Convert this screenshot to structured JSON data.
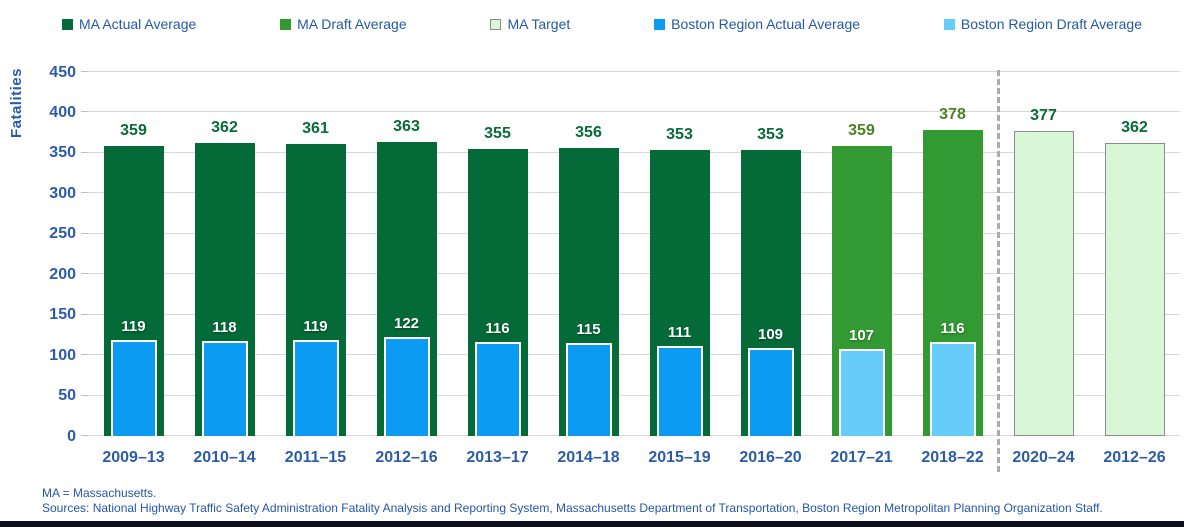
{
  "chart_data": {
    "type": "bar",
    "title": "",
    "xlabel": "",
    "ylabel": "Fatalities",
    "ylim": [
      0,
      450
    ],
    "ytick_step": 50,
    "grid": true,
    "legend_position": "top",
    "categories": [
      "2009–13",
      "2010–14",
      "2011–15",
      "2012–16",
      "2013–17",
      "2014–18",
      "2015–19",
      "2016–20",
      "2017–21",
      "2018–22",
      "2020–24",
      "2012–26"
    ],
    "series": [
      {
        "name": "MA Actual Average",
        "role": "outer",
        "color": "#046A38",
        "label_color": "#0A6B3A",
        "values": [
          359,
          362,
          361,
          363,
          355,
          356,
          353,
          353,
          null,
          null,
          null,
          null
        ]
      },
      {
        "name": "MA Draft Average",
        "role": "outer",
        "color": "#339933",
        "label_color": "#4E8126",
        "values": [
          null,
          null,
          null,
          null,
          null,
          null,
          null,
          null,
          359,
          378,
          null,
          null
        ]
      },
      {
        "name": "MA Target",
        "role": "outer",
        "color": "#D7F7D7",
        "border_color": "#8C8C8C",
        "label_color": "#0A6B3A",
        "values": [
          null,
          null,
          null,
          null,
          null,
          null,
          null,
          null,
          null,
          null,
          377,
          362
        ]
      },
      {
        "name": "Boston Region Actual Average",
        "role": "inner",
        "color": "#0C9BF2",
        "values": [
          119,
          118,
          119,
          122,
          116,
          115,
          111,
          109,
          null,
          null,
          null,
          null
        ]
      },
      {
        "name": "Boston Region Draft Average",
        "role": "inner",
        "color": "#66CCFA",
        "values": [
          null,
          null,
          null,
          null,
          null,
          null,
          null,
          null,
          107,
          116,
          null,
          null
        ]
      }
    ],
    "separator_after_category": "2018–22"
  },
  "footer": {
    "note": "MA = Massachusetts.",
    "sources": "Sources: National Highway Traffic Safety Administration Fatality Analysis and Reporting System, Massachusetts Department of Transportation, Boston Region Metropolitan Planning Organization Staff."
  }
}
